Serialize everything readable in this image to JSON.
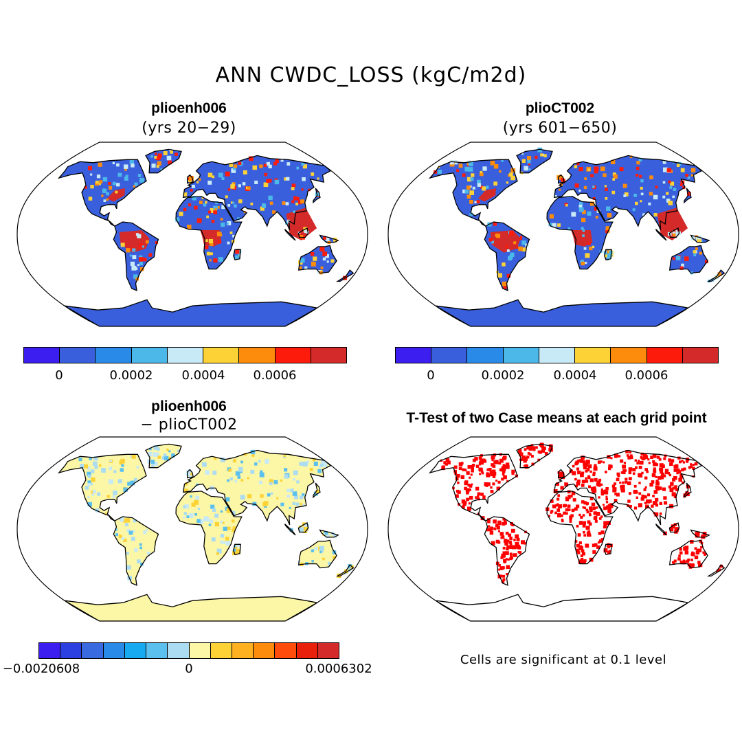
{
  "figure": {
    "title": "ANN CWDC_LOSS (kgC/m2d)"
  },
  "panels": {
    "top_left": {
      "title": "plioenh006",
      "subtitle": "(yrs 20−29)"
    },
    "top_right": {
      "title": "plioCT002",
      "subtitle": "(yrs 601−650)"
    },
    "bottom_left": {
      "title": "plioenh006",
      "subtitle": "− plioCT002"
    },
    "bottom_right": {
      "title": "T-Test of two Case means at each grid point",
      "note": "Cells are significant at 0.1 level"
    }
  },
  "colorbar_abs": {
    "colors": [
      "#3c1ff0",
      "#3a5fdc",
      "#2a8ae8",
      "#4cb8ea",
      "#c8e9f6",
      "#fdd236",
      "#fd8c0c",
      "#fd1c0c",
      "#d42a2a"
    ],
    "tick_labels": [
      "0",
      "0.0002",
      "0.0004",
      "0.0006"
    ]
  },
  "colorbar_diff": {
    "colors": [
      "#3c1ff0",
      "#2c3fe0",
      "#3a6ae0",
      "#2a8ae8",
      "#18aaf0",
      "#5cc0ee",
      "#acdcf2",
      "#fcf7a6",
      "#fdd236",
      "#fdb020",
      "#fd8c0c",
      "#fd4c0c",
      "#e8200c",
      "#d42a2a"
    ],
    "tick_labels": [
      "−0.0020608",
      "0",
      "0.0006302"
    ]
  },
  "map_colors": {
    "ocean": "#ffffff",
    "coast": "#000000",
    "abs_land_base": "#3a5fdc",
    "abs_tropics": "#d42a2a",
    "diff_land_base": "#fcf7a6",
    "ttest_sig": "#ff0000"
  }
}
